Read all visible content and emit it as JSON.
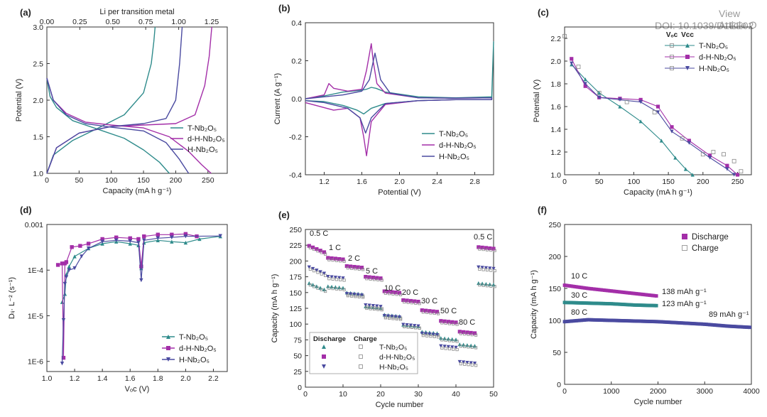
{
  "watermark": {
    "line1": "View Article O",
    "line2": "DOI: 10.1039/D1EE02"
  },
  "colors": {
    "T": "#2e8b8b",
    "dH": "#a32ea8",
    "H": "#4a4aa0",
    "gray": "#888888",
    "grid": "#bbbbbb"
  },
  "chart_data": [
    {
      "panel": "(a)",
      "type": "line",
      "xlabel": "Capacity (mA h g⁻¹)",
      "ylabel": "Potential (V)",
      "top_label": "Li per transition metal",
      "xlim": [
        0,
        280
      ],
      "ylim": [
        1.0,
        3.0
      ],
      "xticks": [
        0,
        50,
        100,
        150,
        200,
        250
      ],
      "yticks": [
        1.0,
        1.5,
        2.0,
        2.5,
        3.0
      ],
      "top_ticks": [
        "0.00",
        "0.25",
        "0.50",
        "0.75",
        "1.00",
        "1.25"
      ],
      "legend": [
        "T-Nb₂O₅",
        "d-H-Nb₂O₅",
        "H-Nb₂O₅"
      ],
      "series": [
        {
          "name": "T-Nb2O5 discharge",
          "key": "T",
          "x": [
            0,
            5,
            15,
            40,
            80,
            120,
            150,
            175,
            190
          ],
          "y": [
            2.3,
            2.05,
            1.9,
            1.72,
            1.6,
            1.48,
            1.32,
            1.15,
            1.0
          ]
        },
        {
          "name": "T-Nb2O5 charge",
          "key": "T",
          "x": [
            0,
            10,
            40,
            80,
            120,
            150,
            162,
            166,
            168
          ],
          "y": [
            1.0,
            1.25,
            1.45,
            1.62,
            1.8,
            2.1,
            2.5,
            2.8,
            3.0
          ]
        },
        {
          "name": "d-H-Nb2O5 discharge",
          "key": "dH",
          "x": [
            0,
            10,
            30,
            60,
            100,
            150,
            190,
            220,
            240,
            255
          ],
          "y": [
            2.3,
            2.0,
            1.82,
            1.7,
            1.66,
            1.62,
            1.5,
            1.3,
            1.12,
            1.0
          ]
        },
        {
          "name": "d-H-Nb2O5 charge",
          "key": "dH",
          "x": [
            0,
            15,
            50,
            100,
            150,
            200,
            230,
            245,
            252,
            256
          ],
          "y": [
            1.0,
            1.35,
            1.55,
            1.64,
            1.66,
            1.68,
            1.8,
            2.2,
            2.6,
            3.0
          ]
        },
        {
          "name": "H-Nb2O5 discharge",
          "key": "H",
          "x": [
            0,
            10,
            30,
            60,
            100,
            150,
            185,
            205,
            220
          ],
          "y": [
            2.3,
            2.0,
            1.8,
            1.68,
            1.63,
            1.58,
            1.42,
            1.2,
            1.0
          ]
        },
        {
          "name": "H-Nb2O5 charge",
          "key": "H",
          "x": [
            0,
            15,
            50,
            100,
            150,
            185,
            200,
            206,
            210
          ],
          "y": [
            1.0,
            1.35,
            1.55,
            1.64,
            1.68,
            1.75,
            2.0,
            2.5,
            3.0
          ]
        }
      ]
    },
    {
      "panel": "(b)",
      "type": "line",
      "xlabel": "Potential (V)",
      "ylabel": "Current (A g⁻¹)",
      "xlim": [
        1.0,
        3.0
      ],
      "ylim": [
        -0.4,
        0.4
      ],
      "xticks": [
        1.2,
        1.6,
        2.0,
        2.4,
        2.8
      ],
      "yticks": [
        -0.4,
        -0.2,
        0.0,
        0.2,
        0.4
      ],
      "legend": [
        "T-Nb₂O₅",
        "d-H-Nb₂O₅",
        "H-Nb₂O₅"
      ],
      "series": [
        {
          "name": "T-Nb2O5",
          "key": "T",
          "x": [
            1.0,
            1.2,
            1.4,
            1.6,
            1.65,
            1.7,
            1.75,
            1.85,
            2.2,
            2.6,
            2.98,
            3.0,
            2.98,
            2.6,
            2.2,
            1.85,
            1.7,
            1.62,
            1.55,
            1.4,
            1.2,
            1.0
          ],
          "y": [
            0.0,
            0.015,
            0.035,
            0.045,
            0.05,
            0.06,
            0.055,
            0.035,
            0.01,
            0.005,
            0.01,
            0.3,
            -0.005,
            -0.005,
            -0.01,
            -0.025,
            -0.05,
            -0.08,
            -0.06,
            -0.035,
            -0.015,
            -0.01
          ]
        },
        {
          "name": "d-H-Nb2O5",
          "key": "dH",
          "x": [
            1.0,
            1.2,
            1.25,
            1.3,
            1.45,
            1.6,
            1.65,
            1.7,
            1.72,
            1.76,
            1.85,
            2.2,
            2.6,
            2.98,
            2.98,
            2.6,
            2.2,
            1.85,
            1.7,
            1.65,
            1.62,
            1.58,
            1.45,
            1.3,
            1.0
          ],
          "y": [
            0.0,
            0.02,
            0.08,
            0.055,
            0.04,
            0.05,
            0.15,
            0.29,
            0.2,
            0.08,
            0.03,
            0.005,
            0.003,
            0.005,
            -0.005,
            -0.005,
            -0.01,
            -0.03,
            -0.12,
            -0.3,
            -0.2,
            -0.1,
            -0.05,
            -0.06,
            -0.02
          ]
        },
        {
          "name": "H-Nb2O5",
          "key": "H",
          "x": [
            1.0,
            1.2,
            1.4,
            1.6,
            1.68,
            1.74,
            1.8,
            1.9,
            2.2,
            2.6,
            2.98,
            2.98,
            2.6,
            2.2,
            1.85,
            1.7,
            1.64,
            1.58,
            1.45,
            1.2,
            1.0
          ],
          "y": [
            0.0,
            0.01,
            0.02,
            0.04,
            0.1,
            0.24,
            0.1,
            0.03,
            0.005,
            0.003,
            0.005,
            -0.005,
            -0.005,
            -0.01,
            -0.025,
            -0.1,
            -0.18,
            -0.1,
            -0.05,
            -0.02,
            -0.01
          ]
        }
      ]
    },
    {
      "panel": "(c)",
      "type": "line+scatter",
      "xlabel": "Capacity (mA h g⁻¹)",
      "ylabel": "Potential (V)",
      "xlim": [
        0,
        270
      ],
      "ylim": [
        1.0,
        2.3
      ],
      "xticks": [
        0,
        50,
        100,
        150,
        200,
        250
      ],
      "yticks": [
        1.0,
        1.2,
        1.4,
        1.6,
        1.8,
        2.0,
        2.2
      ],
      "legend_header": [
        "Vₒᴄ",
        "Vᴄᴄ"
      ],
      "legend": [
        "T-Nb₂O₅",
        "d-H-Nb₂O₅",
        "H-Nb₂O₅"
      ],
      "series": [
        {
          "name": "T-Nb2O5 Vcc",
          "key": "T",
          "marker": "triangle",
          "x": [
            10,
            30,
            50,
            80,
            110,
            140,
            160,
            175,
            185
          ],
          "y": [
            1.97,
            1.84,
            1.72,
            1.6,
            1.47,
            1.3,
            1.15,
            1.05,
            1.0
          ]
        },
        {
          "name": "d-H-Nb2O5 Vcc",
          "key": "dH",
          "marker": "square",
          "x": [
            10,
            30,
            50,
            80,
            110,
            135,
            155,
            180,
            210,
            235,
            250
          ],
          "y": [
            2.02,
            1.78,
            1.68,
            1.67,
            1.66,
            1.6,
            1.42,
            1.3,
            1.17,
            1.08,
            1.0
          ]
        },
        {
          "name": "H-Nb2O5 Vcc",
          "key": "H",
          "marker": "tri-down",
          "x": [
            10,
            30,
            50,
            80,
            110,
            135,
            155,
            180,
            210,
            235,
            245
          ],
          "y": [
            1.98,
            1.8,
            1.68,
            1.66,
            1.64,
            1.55,
            1.38,
            1.28,
            1.15,
            1.05,
            1.0
          ]
        },
        {
          "name": "OCV open markers",
          "key": "gray",
          "marker": "open",
          "x": [
            0,
            20,
            50,
            90,
            130,
            170,
            200,
            215,
            230,
            245,
            255
          ],
          "y": [
            2.22,
            1.95,
            1.72,
            1.64,
            1.55,
            1.32,
            1.18,
            1.2,
            1.18,
            1.12,
            1.03
          ]
        }
      ]
    },
    {
      "panel": "(d)",
      "type": "line+scatter",
      "xlabel": "Vₒᴄ (V)",
      "ylabel": "Dₗᵢ· L⁻² (s⁻¹)",
      "yscale": "log",
      "xlim": [
        1.0,
        2.3
      ],
      "ylim": [
        6e-07,
        0.001
      ],
      "xticks": [
        1.0,
        1.2,
        1.4,
        1.6,
        1.8,
        2.0,
        2.2
      ],
      "yticks": [
        "1E-6",
        "1E-5",
        "1E-4",
        "0.001"
      ],
      "legend": [
        "T-Nb₂O₅",
        "d-H-Nb₂O₅",
        "H-Nb₂O₅"
      ],
      "series": [
        {
          "name": "T-Nb2O5",
          "key": "T",
          "marker": "triangle",
          "x": [
            1.11,
            1.13,
            1.14,
            1.16,
            1.2,
            1.3,
            1.4,
            1.5,
            1.6,
            1.66,
            1.68,
            1.7,
            1.8,
            1.9,
            2.0,
            2.1,
            2.25
          ],
          "y": [
            2e-05,
            3e-05,
            8e-05,
            0.00012,
            0.0002,
            0.0003,
            0.00038,
            0.00042,
            0.00038,
            0.00035,
            0.00011,
            0.0004,
            0.00045,
            0.00042,
            0.0004,
            0.00048,
            0.00055
          ]
        },
        {
          "name": "d-H-Nb2O5",
          "key": "dH",
          "marker": "square",
          "x": [
            1.08,
            1.11,
            1.12,
            1.13,
            1.14,
            1.18,
            1.24,
            1.3,
            1.4,
            1.5,
            1.6,
            1.66,
            1.68,
            1.7,
            1.8,
            1.9,
            2.0,
            2.08
          ],
          "y": [
            0.00013,
            0.00014,
            1.2e-06,
            0.00014,
            0.00015,
            0.00032,
            0.00034,
            0.00038,
            0.00048,
            0.00052,
            0.0005,
            0.00048,
            0.00012,
            0.00055,
            0.0006,
            0.0006,
            0.00062,
            0.00055
          ]
        },
        {
          "name": "H-Nb2O5",
          "key": "H",
          "marker": "tri-down",
          "x": [
            1.11,
            1.12,
            1.13,
            1.14,
            1.16,
            1.2,
            1.25,
            1.3,
            1.4,
            1.5,
            1.6,
            1.66,
            1.68,
            1.7,
            1.8,
            1.9,
            2.0,
            2.25
          ],
          "y": [
            9e-07,
            8e-06,
            5e-05,
            7e-05,
            0.0001,
            0.00011,
            0.0002,
            0.0003,
            0.00042,
            0.00045,
            0.00043,
            0.0004,
            6e-05,
            0.00045,
            0.0005,
            0.00052,
            0.00055,
            0.00056
          ]
        }
      ]
    },
    {
      "panel": "(e)",
      "type": "scatter",
      "xlabel": "Cycle number",
      "ylabel": "Capacity (mA h g⁻¹)",
      "xlim": [
        0,
        50
      ],
      "ylim": [
        0,
        250
      ],
      "xticks": [
        0,
        10,
        20,
        30,
        40,
        50
      ],
      "yticks": [
        0,
        25,
        50,
        75,
        100,
        125,
        150,
        175,
        200,
        225,
        250
      ],
      "rate_labels": [
        "0.5 C",
        "1 C",
        "2 C",
        "5 C",
        "10 C",
        "20 C",
        "30 C",
        "50 C",
        "80 C",
        "0.5 C"
      ],
      "legend_header": [
        "Discharge",
        "Charge"
      ],
      "legend": [
        "T-Nb₂O₅",
        "d-H-Nb₂O₅",
        "H-Nb₂O₅"
      ],
      "rate_blocks": {
        "start_cycles": [
          1,
          6,
          11,
          16,
          21,
          26,
          31,
          36,
          41,
          46
        ],
        "cycles_per_block": 5
      },
      "series": [
        {
          "name": "T-Nb2O5",
          "key": "T",
          "marker": "triangle",
          "block_values": [
            165,
            160,
            150,
            128,
            115,
            99,
            88,
            78,
            68,
            165
          ]
        },
        {
          "name": "d-H-Nb2O5",
          "key": "dH",
          "marker": "square",
          "block_values": [
            224,
            205,
            192,
            175,
            152,
            138,
            122,
            105,
            88,
            222
          ]
        },
        {
          "name": "H-Nb2O5",
          "key": "H",
          "marker": "tri-down",
          "block_values": [
            190,
            175,
            148,
            130,
            113,
            99,
            85,
            65,
            40,
            190
          ]
        }
      ]
    },
    {
      "panel": "(f)",
      "type": "scatter",
      "xlabel": "Cycle number",
      "ylabel": "Capacity (mA h g⁻¹)",
      "xlim": [
        0,
        4000
      ],
      "ylim": [
        0,
        250
      ],
      "xticks": [
        0,
        1000,
        2000,
        3000,
        4000
      ],
      "yticks": [
        0,
        50,
        100,
        150,
        200,
        250
      ],
      "legend": [
        "Discharge",
        "Charge"
      ],
      "annotations": [
        "10 C",
        "30 C",
        "80 C",
        "138 mAh g⁻¹",
        "123 mAh g⁻¹",
        "89 mAh g⁻¹"
      ],
      "series": [
        {
          "name": "10 C",
          "key": "dH",
          "x": [
            0,
            500,
            1000,
            1500,
            2000
          ],
          "y": [
            155,
            150,
            146,
            142,
            138
          ]
        },
        {
          "name": "30 C",
          "key": "T",
          "x": [
            0,
            500,
            1000,
            1500,
            2000
          ],
          "y": [
            128,
            127,
            126,
            124,
            123
          ]
        },
        {
          "name": "80 C",
          "key": "H",
          "x": [
            0,
            500,
            1000,
            1500,
            2000,
            2500,
            3000,
            3500,
            4000
          ],
          "y": [
            98,
            101,
            100,
            99,
            98,
            96,
            94,
            91,
            89
          ]
        }
      ]
    }
  ]
}
